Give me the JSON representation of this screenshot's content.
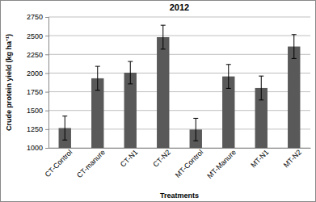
{
  "chart_data": {
    "type": "bar",
    "title": "2012",
    "x_label": "Treatments",
    "y_label": "Crude protein yield (kg ha⁻¹)",
    "categories": [
      "CT-Control",
      "CT-manure",
      "CT-N1",
      "CT-N2",
      "MT-Control",
      "MT-Manure",
      "MT-N1",
      "MT-N2"
    ],
    "values": [
      1265,
      1930,
      2005,
      2480,
      1245,
      1955,
      1800,
      2355
    ],
    "errors": [
      160,
      160,
      150,
      160,
      150,
      160,
      160,
      160
    ],
    "color": "#595959",
    "ylim": [
      1000,
      2750
    ],
    "yticks": [
      1000,
      1250,
      1500,
      1750,
      2000,
      2250,
      2500,
      2750
    ],
    "grid": true
  }
}
